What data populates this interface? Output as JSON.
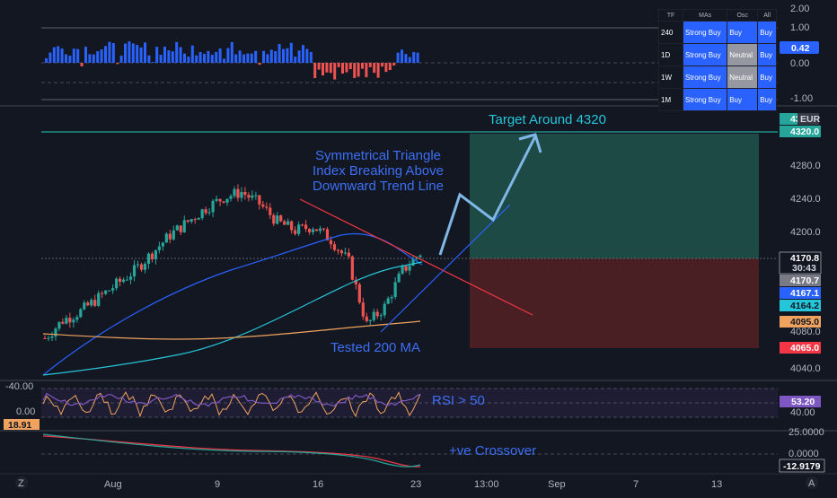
{
  "colors": {
    "background": "#131722",
    "up_candle": "#26a69a",
    "down_candle": "#ef5350",
    "ma_fast": "#2962ff",
    "ma_mid": "#26c6da",
    "ma_200": "#f0a35e",
    "resistance": "#f23645",
    "support": "#2962ff",
    "target_zone": "#1e4a45",
    "stop_zone": "#4a1f24",
    "annotation": "#3d6ff5",
    "target_text": "#26c6da",
    "arrow": "#7fb7e6"
  },
  "top_panel": {
    "axis_labels": [
      "2.00",
      "1.00",
      "0.00",
      "-1.00"
    ],
    "value_tag": "0.42"
  },
  "summary_table": {
    "headers": [
      "TF",
      "MAs",
      "Osc",
      "All"
    ],
    "rows": [
      {
        "tf": "240",
        "mas": "Strong Buy",
        "osc": "Buy",
        "all": "Buy"
      },
      {
        "tf": "1D",
        "mas": "Strong Buy",
        "osc": "Neutral",
        "all": "Buy"
      },
      {
        "tf": "1W",
        "mas": "Strong Buy",
        "osc": "Neutral",
        "all": "Buy"
      },
      {
        "tf": "1M",
        "mas": "Strong Buy",
        "osc": "Buy",
        "all": "Buy"
      }
    ]
  },
  "main_panel": {
    "currency": "EUR",
    "axis_labels": [
      "4280.0",
      "4240.0",
      "4200.0",
      "4080.0",
      "4040.0"
    ],
    "price_tags": {
      "target": "4320.0",
      "target_partial": "43",
      "last": "4170.8",
      "countdown": "30:43",
      "ma_fast": "4170.7",
      "ma_mid": "4167.1",
      "ma_cyan": "4164.2",
      "ma_200": "4095.0",
      "stop": "4065.0"
    },
    "annotations": {
      "target": "Target Around 4320",
      "triangle_line1": "Symmetrical Triangle",
      "triangle_line2": "Index Breaking Above",
      "triangle_line3": "Downward Trend Line",
      "tested": "Tested 200 MA"
    }
  },
  "rsi_panel": {
    "axis_labels": [
      "-40.00",
      "0.00",
      "40.00"
    ],
    "value_tag": "53.20",
    "left_tag": "18.91",
    "annotation": "RSI > 50"
  },
  "macd_panel": {
    "axis_labels": [
      "25.0000",
      "0.0000"
    ],
    "value_tag": "-12.9179",
    "annotation": "+ve Crossover"
  },
  "time_axis": {
    "labels": [
      "Aug",
      "9",
      "16",
      "23",
      "13:00",
      "Sep",
      "7",
      "13"
    ],
    "left_icon": "Z",
    "right_icon": "A"
  },
  "chart_data": {
    "type": "candlestick",
    "currency": "EUR",
    "x": [
      "Aug",
      "9",
      "16",
      "23",
      "13:00",
      "Sep",
      "7",
      "13"
    ],
    "ylim": [
      4030,
      4330
    ],
    "close_path": [
      4075,
      4095,
      4105,
      4120,
      4135,
      4150,
      4170,
      4190,
      4205,
      4220,
      4232,
      4238,
      4225,
      4205,
      4195,
      4200,
      4185,
      4160,
      4090,
      4110,
      4150,
      4170
    ],
    "moving_averages": [
      {
        "name": "fast",
        "last": 4170.7
      },
      {
        "name": "mid",
        "last": 4167.1
      },
      {
        "name": "cyan",
        "last": 4164.2
      },
      {
        "name": "200",
        "last": 4095.0
      }
    ],
    "levels": {
      "target": 4320.0,
      "entry": 4170.8,
      "stop": 4065.0
    }
  }
}
